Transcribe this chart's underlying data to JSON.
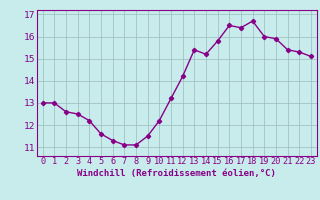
{
  "x": [
    0,
    1,
    2,
    3,
    4,
    5,
    6,
    7,
    8,
    9,
    10,
    11,
    12,
    13,
    14,
    15,
    16,
    17,
    18,
    19,
    20,
    21,
    22,
    23
  ],
  "y": [
    13.0,
    13.0,
    12.6,
    12.5,
    12.2,
    11.6,
    11.3,
    11.1,
    11.1,
    11.5,
    12.2,
    13.2,
    14.2,
    15.4,
    15.2,
    15.8,
    16.5,
    16.4,
    16.7,
    16.0,
    15.9,
    15.4,
    15.3,
    15.1
  ],
  "line_color": "#880088",
  "marker": "D",
  "markersize": 2.2,
  "linewidth": 1.0,
  "bg_color": "#c8ecec",
  "grid_color": "#99bbbb",
  "xlabel": "Windchill (Refroidissement éolien,°C)",
  "xlabel_color": "#880088",
  "tick_color": "#880088",
  "ylim": [
    10.6,
    17.2
  ],
  "xlim": [
    -0.5,
    23.5
  ],
  "yticks": [
    11,
    12,
    13,
    14,
    15,
    16,
    17
  ],
  "xtick_labels": [
    "0",
    "1",
    "2",
    "3",
    "4",
    "5",
    "6",
    "7",
    "8",
    "9",
    "10",
    "11",
    "12",
    "13",
    "14",
    "15",
    "16",
    "17",
    "18",
    "19",
    "20",
    "21",
    "22",
    "23"
  ],
  "xlabel_fontsize": 6.5,
  "tick_fontsize": 6.2,
  "ytick_fontsize": 6.8
}
